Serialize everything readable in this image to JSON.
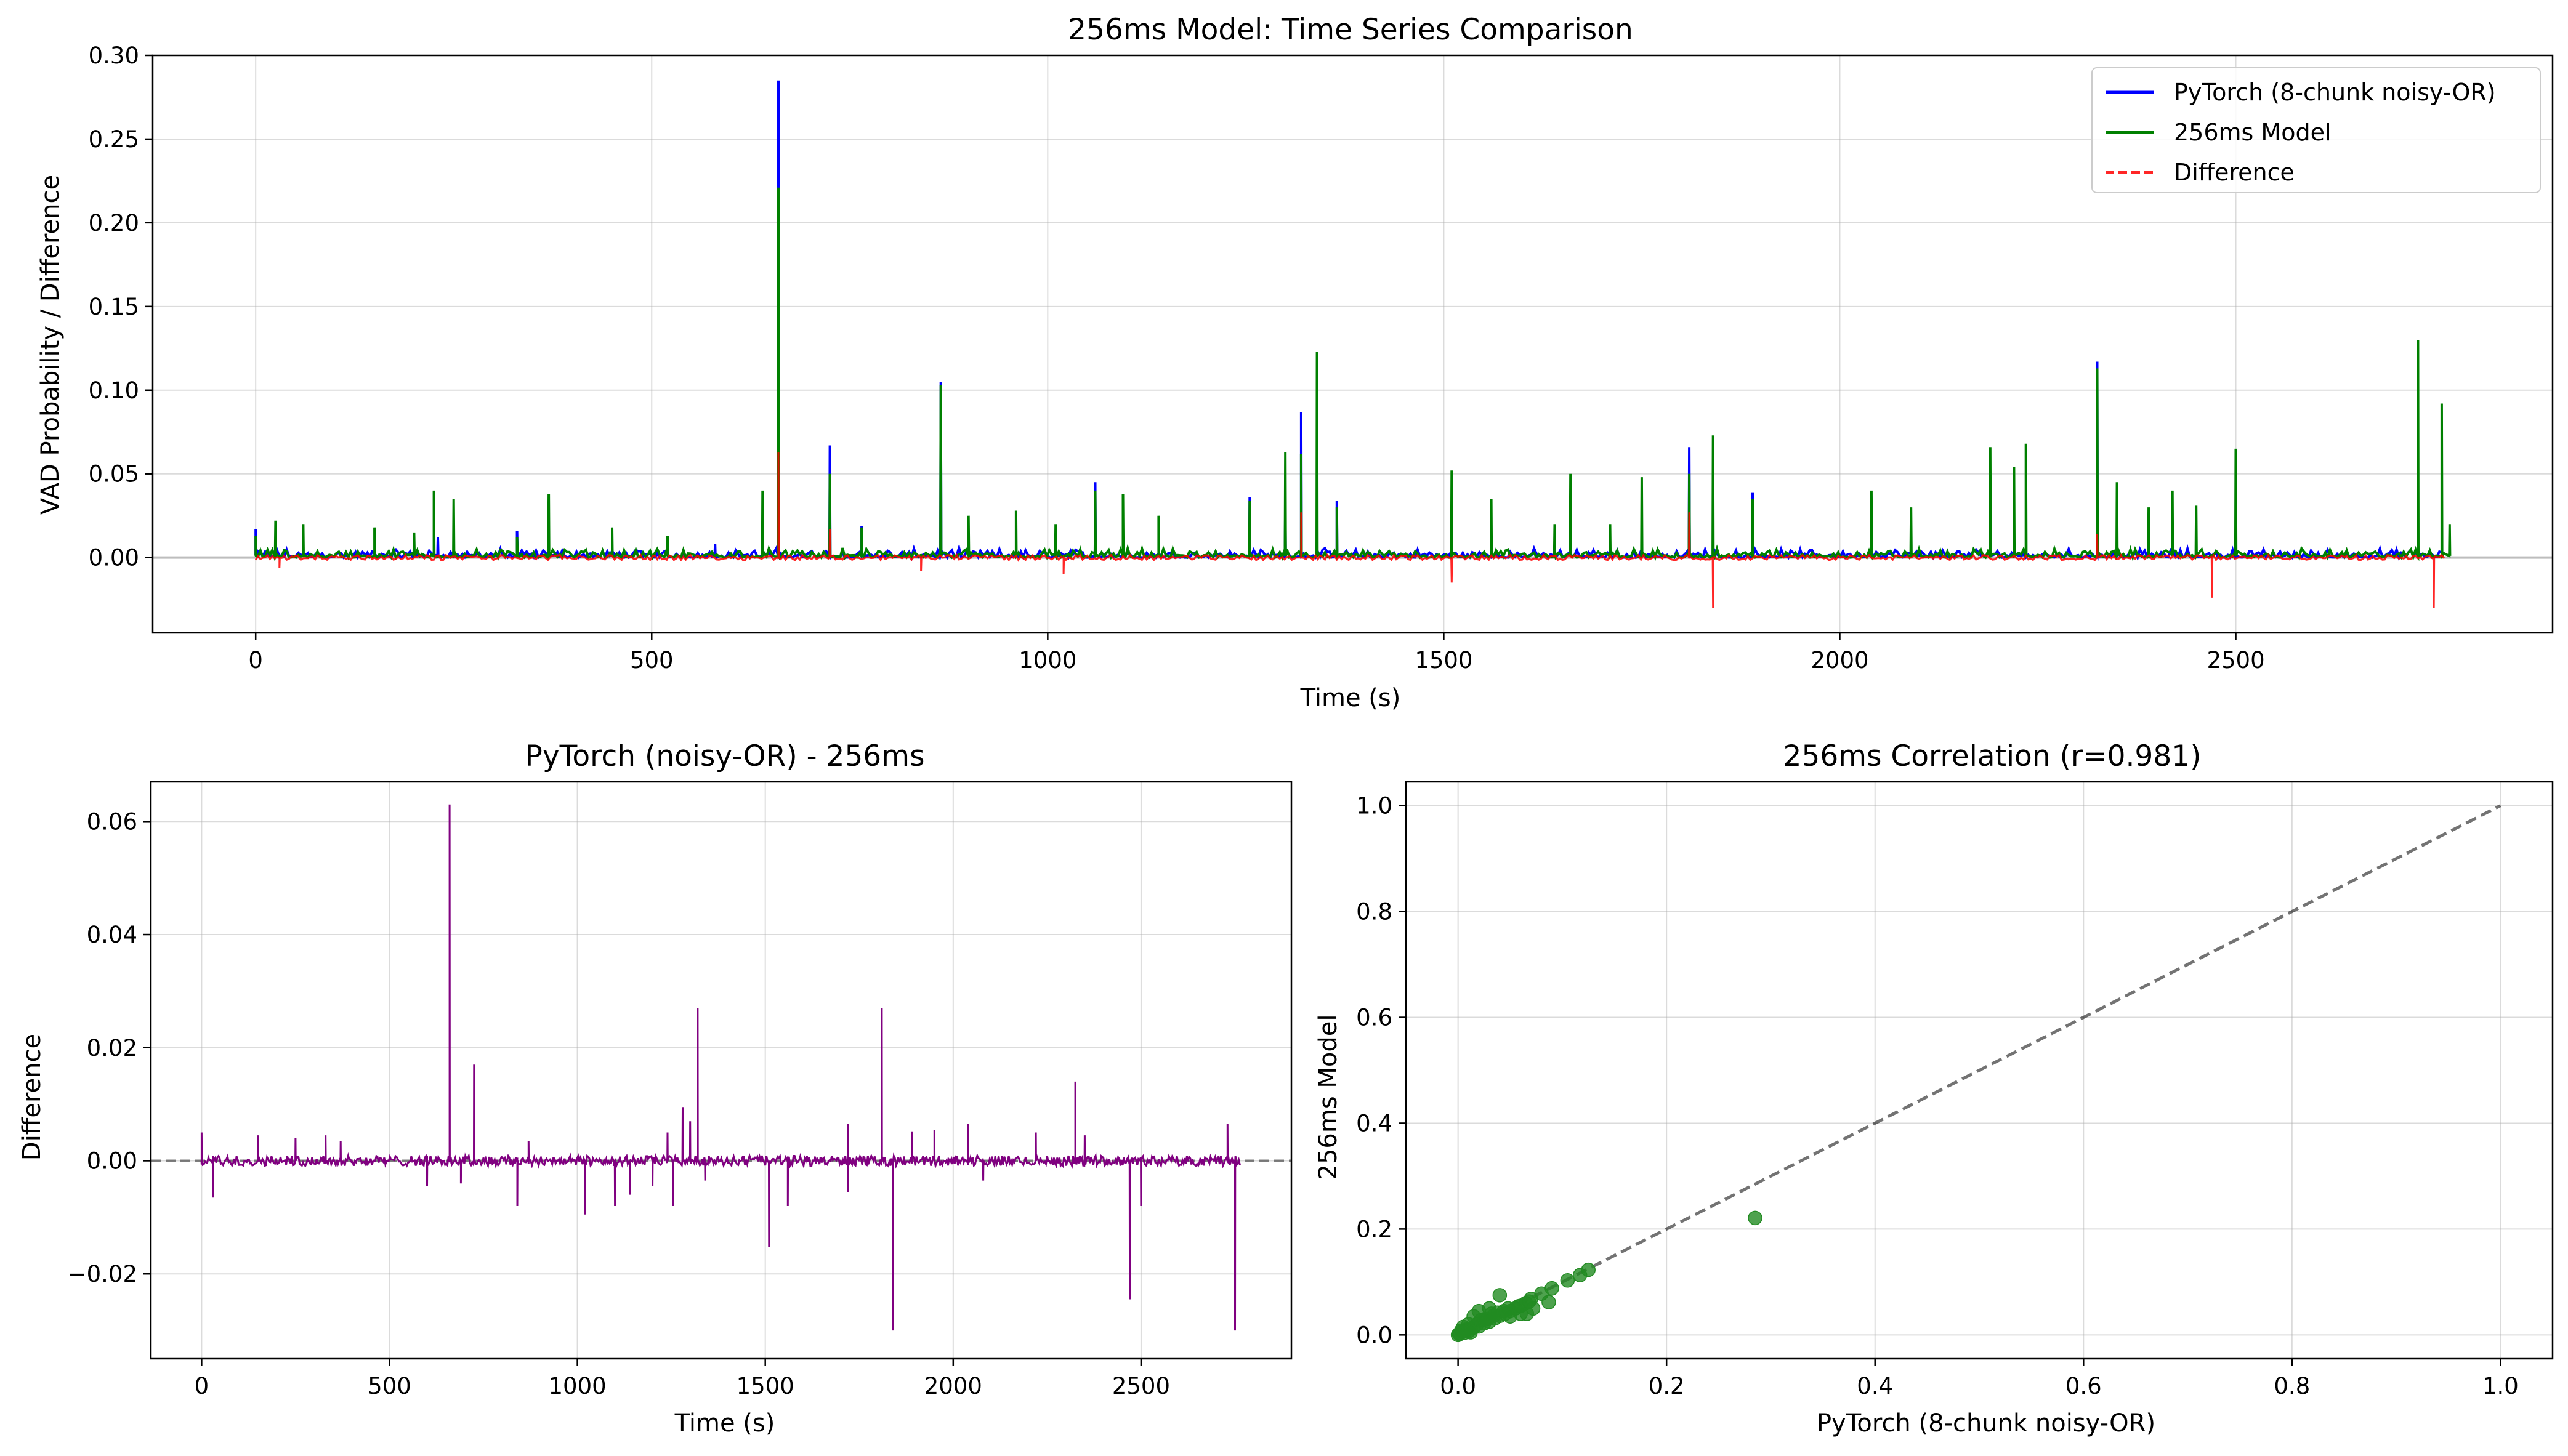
{
  "chart_data": [
    {
      "type": "line",
      "title": "256ms Model: Time Series Comparison",
      "xlabel": "Time (s)",
      "ylabel": "VAD Probability / Difference",
      "xlim": [
        -130,
        2900
      ],
      "ylim": [
        -0.045,
        0.3
      ],
      "xticks": [
        0,
        500,
        1000,
        1500,
        2000,
        2500
      ],
      "yticks": [
        0.0,
        0.05,
        0.1,
        0.15,
        0.2,
        0.25,
        0.3
      ],
      "ytick_labels": [
        "0.00",
        "0.05",
        "0.10",
        "0.15",
        "0.20",
        "0.25",
        "0.30"
      ],
      "grid": true,
      "legend_position": "top-right",
      "zero_line": true,
      "series": [
        {
          "name": "PyTorch (8-chunk noisy-OR)",
          "color": "#0000ff",
          "style": "solid",
          "peaks": [
            [
              0,
              0.017
            ],
            [
              230,
              0.012
            ],
            [
              330,
              0.016
            ],
            [
              580,
              0.008
            ],
            [
              660,
              0.285
            ],
            [
              725,
              0.067
            ],
            [
              765,
              0.019
            ],
            [
              865,
              0.105
            ],
            [
              1060,
              0.045
            ],
            [
              1255,
              0.036
            ],
            [
              1300,
              0.032
            ],
            [
              1320,
              0.087
            ],
            [
              1365,
              0.034
            ],
            [
              1810,
              0.066
            ],
            [
              1890,
              0.039
            ],
            [
              2325,
              0.117
            ]
          ]
        },
        {
          "name": "256ms Model",
          "color": "#008000",
          "style": "solid",
          "peaks": [
            [
              0,
              0.013
            ],
            [
              25,
              0.022
            ],
            [
              60,
              0.02
            ],
            [
              150,
              0.018
            ],
            [
              200,
              0.015
            ],
            [
              225,
              0.04
            ],
            [
              250,
              0.035
            ],
            [
              330,
              0.012
            ],
            [
              370,
              0.038
            ],
            [
              450,
              0.018
            ],
            [
              520,
              0.013
            ],
            [
              640,
              0.04
            ],
            [
              660,
              0.221
            ],
            [
              725,
              0.05
            ],
            [
              765,
              0.018
            ],
            [
              865,
              0.103
            ],
            [
              900,
              0.025
            ],
            [
              960,
              0.028
            ],
            [
              1010,
              0.02
            ],
            [
              1060,
              0.04
            ],
            [
              1095,
              0.038
            ],
            [
              1140,
              0.025
            ],
            [
              1255,
              0.034
            ],
            [
              1300,
              0.063
            ],
            [
              1320,
              0.062
            ],
            [
              1340,
              0.123
            ],
            [
              1365,
              0.03
            ],
            [
              1510,
              0.052
            ],
            [
              1560,
              0.035
            ],
            [
              1640,
              0.02
            ],
            [
              1660,
              0.05
            ],
            [
              1710,
              0.02
            ],
            [
              1750,
              0.048
            ],
            [
              1810,
              0.05
            ],
            [
              1840,
              0.073
            ],
            [
              1890,
              0.035
            ],
            [
              2040,
              0.04
            ],
            [
              2090,
              0.03
            ],
            [
              2190,
              0.066
            ],
            [
              2220,
              0.054
            ],
            [
              2235,
              0.068
            ],
            [
              2325,
              0.113
            ],
            [
              2350,
              0.045
            ],
            [
              2390,
              0.03
            ],
            [
              2420,
              0.04
            ],
            [
              2450,
              0.031
            ],
            [
              2500,
              0.065
            ],
            [
              2730,
              0.13
            ],
            [
              2760,
              0.092
            ],
            [
              2770,
              0.02
            ]
          ]
        },
        {
          "name": "Difference",
          "color": "#ff0000",
          "style": "dashed",
          "peaks": [
            [
              660,
              0.063
            ],
            [
              725,
              0.017
            ],
            [
              1320,
              0.027
            ],
            [
              1810,
              0.027
            ],
            [
              1840,
              -0.03
            ],
            [
              1510,
              -0.015
            ],
            [
              2470,
              -0.024
            ],
            [
              2750,
              -0.03
            ],
            [
              2325,
              0.014
            ],
            [
              1020,
              -0.01
            ],
            [
              840,
              -0.008
            ],
            [
              30,
              -0.006
            ]
          ]
        }
      ]
    },
    {
      "type": "line",
      "title": "PyTorch (noisy-OR) - 256ms",
      "xlabel": "Time (s)",
      "ylabel": "Difference",
      "xlim": [
        -135,
        2900
      ],
      "ylim": [
        -0.035,
        0.067
      ],
      "xticks": [
        0,
        500,
        1000,
        1500,
        2000,
        2500
      ],
      "yticks": [
        -0.02,
        0.0,
        0.02,
        0.04,
        0.06
      ],
      "ytick_labels": [
        "−0.02",
        "0.00",
        "0.02",
        "0.04",
        "0.06"
      ],
      "grid": true,
      "zero_line": true,
      "series": [
        {
          "color": "#800080",
          "peaks": [
            [
              0,
              0.005
            ],
            [
              30,
              -0.0065
            ],
            [
              150,
              0.0045
            ],
            [
              250,
              0.004
            ],
            [
              330,
              0.0045
            ],
            [
              370,
              0.0035
            ],
            [
              600,
              -0.0045
            ],
            [
              660,
              0.063
            ],
            [
              690,
              -0.004
            ],
            [
              725,
              0.017
            ],
            [
              840,
              -0.008
            ],
            [
              870,
              0.0035
            ],
            [
              1020,
              -0.0095
            ],
            [
              1100,
              -0.008
            ],
            [
              1140,
              -0.006
            ],
            [
              1200,
              -0.0045
            ],
            [
              1240,
              0.005
            ],
            [
              1255,
              -0.008
            ],
            [
              1280,
              0.0095
            ],
            [
              1300,
              0.007
            ],
            [
              1320,
              0.027
            ],
            [
              1340,
              -0.0035
            ],
            [
              1510,
              -0.0152
            ],
            [
              1560,
              -0.008
            ],
            [
              1720,
              -0.0055
            ],
            [
              1720,
              0.0065
            ],
            [
              1810,
              0.027
            ],
            [
              1840,
              -0.03
            ],
            [
              1890,
              0.0052
            ],
            [
              1950,
              0.0055
            ],
            [
              2040,
              0.0065
            ],
            [
              2080,
              -0.0035
            ],
            [
              2220,
              0.005
            ],
            [
              2325,
              0.014
            ],
            [
              2350,
              0.0045
            ],
            [
              2470,
              -0.0245
            ],
            [
              2500,
              -0.008
            ],
            [
              2730,
              0.0065
            ],
            [
              2750,
              -0.03
            ]
          ]
        }
      ]
    },
    {
      "type": "scatter",
      "title": "256ms Correlation (r=0.981)",
      "xlabel": "PyTorch (8-chunk noisy-OR)",
      "ylabel": "256ms Model",
      "xlim": [
        -0.05,
        1.05
      ],
      "ylim": [
        -0.045,
        1.045
      ],
      "xticks": [
        0.0,
        0.2,
        0.4,
        0.6,
        0.8,
        1.0
      ],
      "yticks": [
        0.0,
        0.2,
        0.4,
        0.6,
        0.8,
        1.0
      ],
      "xtick_labels": [
        "0.0",
        "0.2",
        "0.4",
        "0.6",
        "0.8",
        "1.0"
      ],
      "ytick_labels": [
        "0.0",
        "0.2",
        "0.4",
        "0.6",
        "0.8",
        "1.0"
      ],
      "grid": true,
      "color": "#228b22",
      "reference_line": [
        [
          0,
          0
        ],
        [
          1,
          1
        ]
      ],
      "points": [
        [
          0.0,
          0.0
        ],
        [
          0.002,
          0.003
        ],
        [
          0.004,
          0.006
        ],
        [
          0.006,
          0.004
        ],
        [
          0.008,
          0.01
        ],
        [
          0.01,
          0.007
        ],
        [
          0.012,
          0.012
        ],
        [
          0.015,
          0.014
        ],
        [
          0.018,
          0.02
        ],
        [
          0.02,
          0.016
        ],
        [
          0.022,
          0.028
        ],
        [
          0.025,
          0.022
        ],
        [
          0.028,
          0.03
        ],
        [
          0.03,
          0.025
        ],
        [
          0.032,
          0.04
        ],
        [
          0.035,
          0.031
        ],
        [
          0.038,
          0.042
        ],
        [
          0.04,
          0.036
        ],
        [
          0.045,
          0.04
        ],
        [
          0.048,
          0.05
        ],
        [
          0.05,
          0.045
        ],
        [
          0.055,
          0.05
        ],
        [
          0.06,
          0.055
        ],
        [
          0.065,
          0.06
        ],
        [
          0.068,
          0.063
        ],
        [
          0.072,
          0.05
        ],
        [
          0.08,
          0.078
        ],
        [
          0.09,
          0.088
        ],
        [
          0.105,
          0.103
        ],
        [
          0.117,
          0.113
        ],
        [
          0.125,
          0.123
        ],
        [
          0.03,
          0.05
        ],
        [
          0.04,
          0.075
        ],
        [
          0.02,
          0.045
        ],
        [
          0.015,
          0.035
        ],
        [
          0.066,
          0.04
        ],
        [
          0.087,
          0.062
        ],
        [
          0.285,
          0.221
        ],
        [
          0.01,
          0.02
        ],
        [
          0.005,
          0.015
        ],
        [
          0.003,
          0.008
        ],
        [
          0.001,
          0.002
        ],
        [
          0.012,
          0.005
        ],
        [
          0.026,
          0.03
        ],
        [
          0.034,
          0.036
        ],
        [
          0.044,
          0.045
        ],
        [
          0.058,
          0.054
        ],
        [
          0.07,
          0.068
        ],
        [
          0.06,
          0.04
        ],
        [
          0.05,
          0.035
        ]
      ]
    }
  ]
}
